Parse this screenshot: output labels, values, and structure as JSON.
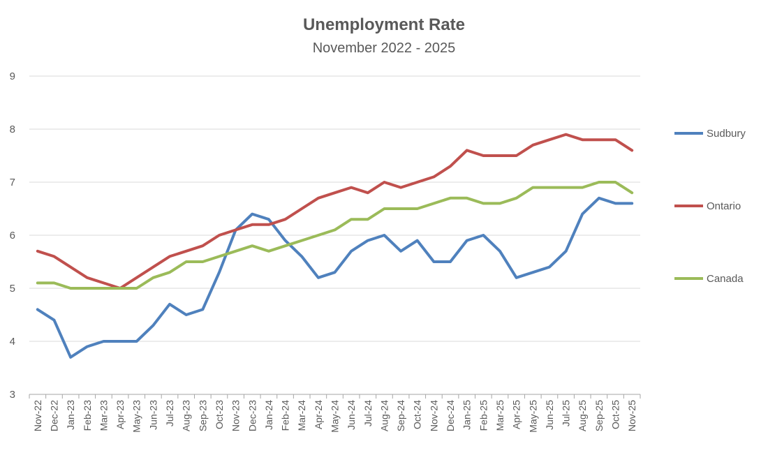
{
  "chart_data": {
    "type": "line",
    "title": "Unemployment Rate",
    "subtitle": "November 2022 - 2025",
    "xlabel": "",
    "ylabel": "",
    "ylim": [
      3,
      9
    ],
    "yticks": [
      3,
      4,
      5,
      6,
      7,
      8,
      9
    ],
    "grid": true,
    "legend_position": "right",
    "categories": [
      "Nov-22",
      "Dec-22",
      "Jan-23",
      "Feb-23",
      "Mar-23",
      "Apr-23",
      "May-23",
      "Jun-23",
      "Jul-23",
      "Aug-23",
      "Sep-23",
      "Oct-23",
      "Nov-23",
      "Dec-23",
      "Jan-24",
      "Feb-24",
      "Mar-24",
      "Apr-24",
      "May-24",
      "Jun-24",
      "Jul-24",
      "Aug-24",
      "Sep-24",
      "Oct-24",
      "Nov-24",
      "Dec-24",
      "Jan-25",
      "Feb-25",
      "Mar-25",
      "Apr-25",
      "May-25",
      "Jun-25",
      "Jul-25",
      "Aug-25",
      "Sep-25",
      "Oct-25",
      "Nov-25"
    ],
    "series": [
      {
        "name": "Sudbury",
        "color": "#4f81bd",
        "values": [
          4.6,
          4.4,
          3.7,
          3.9,
          4.0,
          4.0,
          4.0,
          4.3,
          4.7,
          4.5,
          4.6,
          5.3,
          6.1,
          6.4,
          6.3,
          5.9,
          5.6,
          5.2,
          5.3,
          5.7,
          5.9,
          6.0,
          5.7,
          5.9,
          5.5,
          5.5,
          5.9,
          6.0,
          5.7,
          5.2,
          5.3,
          5.4,
          5.7,
          6.4,
          6.7,
          6.6,
          6.6
        ]
      },
      {
        "name": "Ontario",
        "color": "#c0504d",
        "values": [
          5.7,
          5.6,
          5.4,
          5.2,
          5.1,
          5.0,
          5.2,
          5.4,
          5.6,
          5.7,
          5.8,
          6.0,
          6.1,
          6.2,
          6.2,
          6.3,
          6.5,
          6.7,
          6.8,
          6.9,
          6.8,
          7.0,
          6.9,
          7.0,
          7.1,
          7.3,
          7.6,
          7.5,
          7.5,
          7.5,
          7.7,
          7.8,
          7.9,
          7.8,
          7.8,
          7.8,
          7.6
        ]
      },
      {
        "name": "Canada",
        "color": "#9bbb59",
        "values": [
          5.1,
          5.1,
          5.0,
          5.0,
          5.0,
          5.0,
          5.0,
          5.2,
          5.3,
          5.5,
          5.5,
          5.6,
          5.7,
          5.8,
          5.7,
          5.8,
          5.9,
          6.0,
          6.1,
          6.3,
          6.3,
          6.5,
          6.5,
          6.5,
          6.6,
          6.7,
          6.7,
          6.6,
          6.6,
          6.7,
          6.9,
          6.9,
          6.9,
          6.9,
          7.0,
          7.0,
          6.8
        ]
      }
    ]
  }
}
